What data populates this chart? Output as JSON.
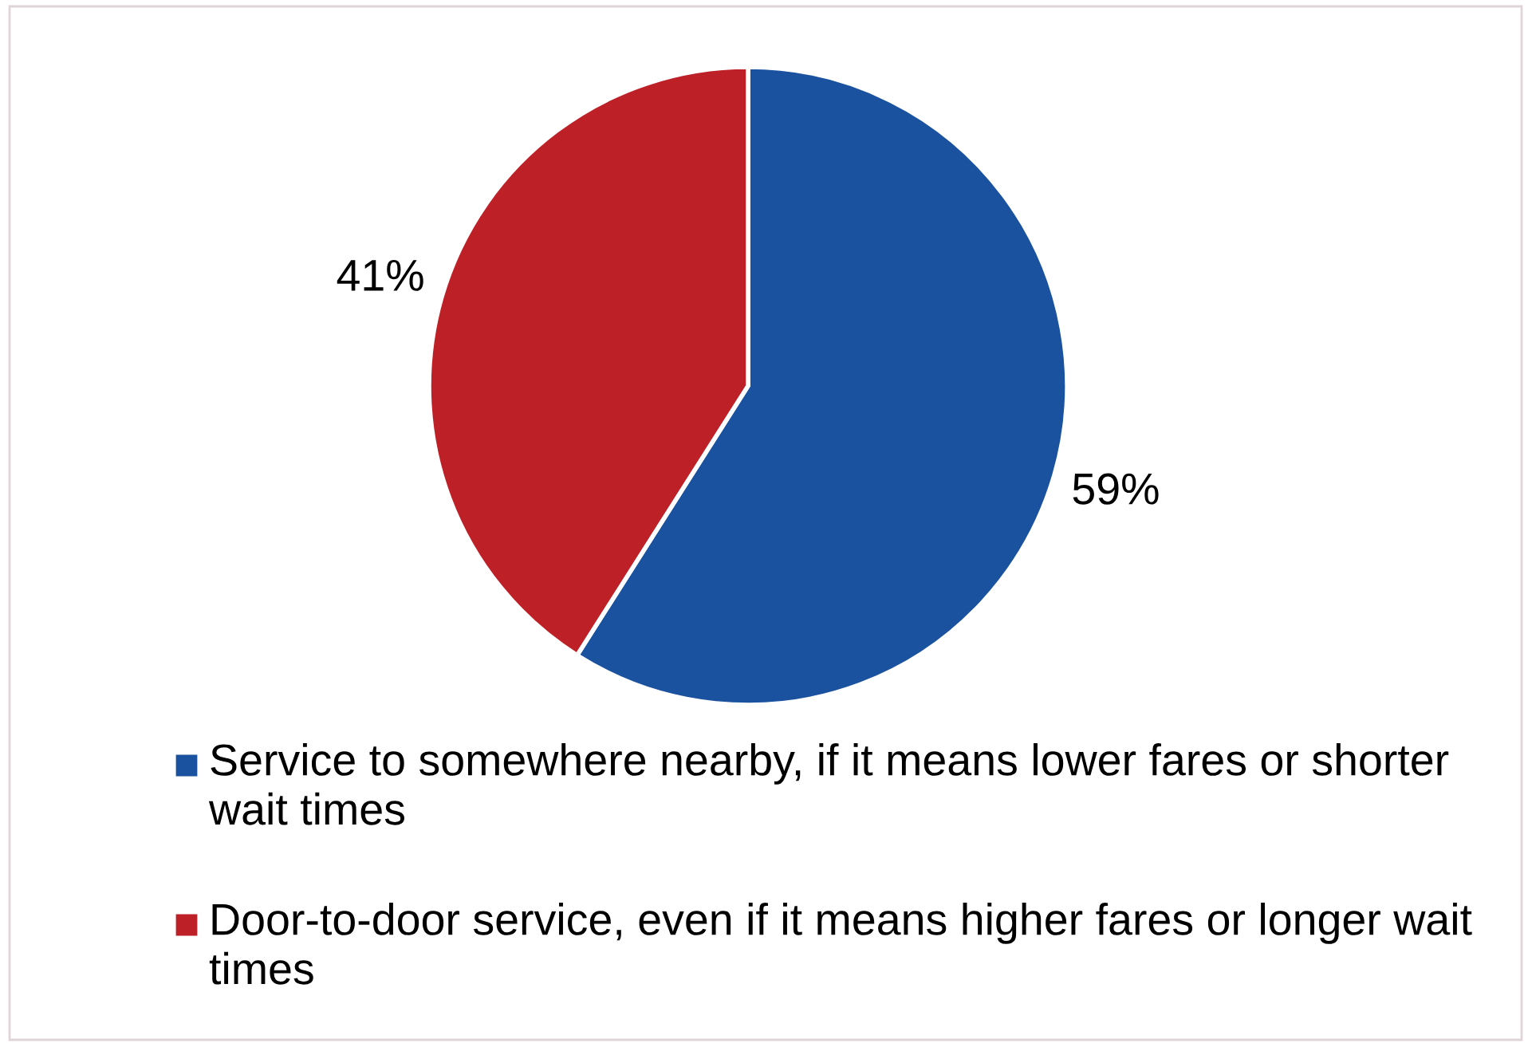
{
  "chart_data": {
    "type": "pie",
    "categories": [
      "Service to somewhere nearby, if it means lower fares or shorter wait times",
      "Door-to-door service, even if it means higher fares or longer wait times"
    ],
    "values": [
      59,
      41
    ],
    "colors": [
      "#1a52a0",
      "#be2028"
    ],
    "value_labels": [
      "59%",
      "41%"
    ],
    "legend": "bottom"
  }
}
